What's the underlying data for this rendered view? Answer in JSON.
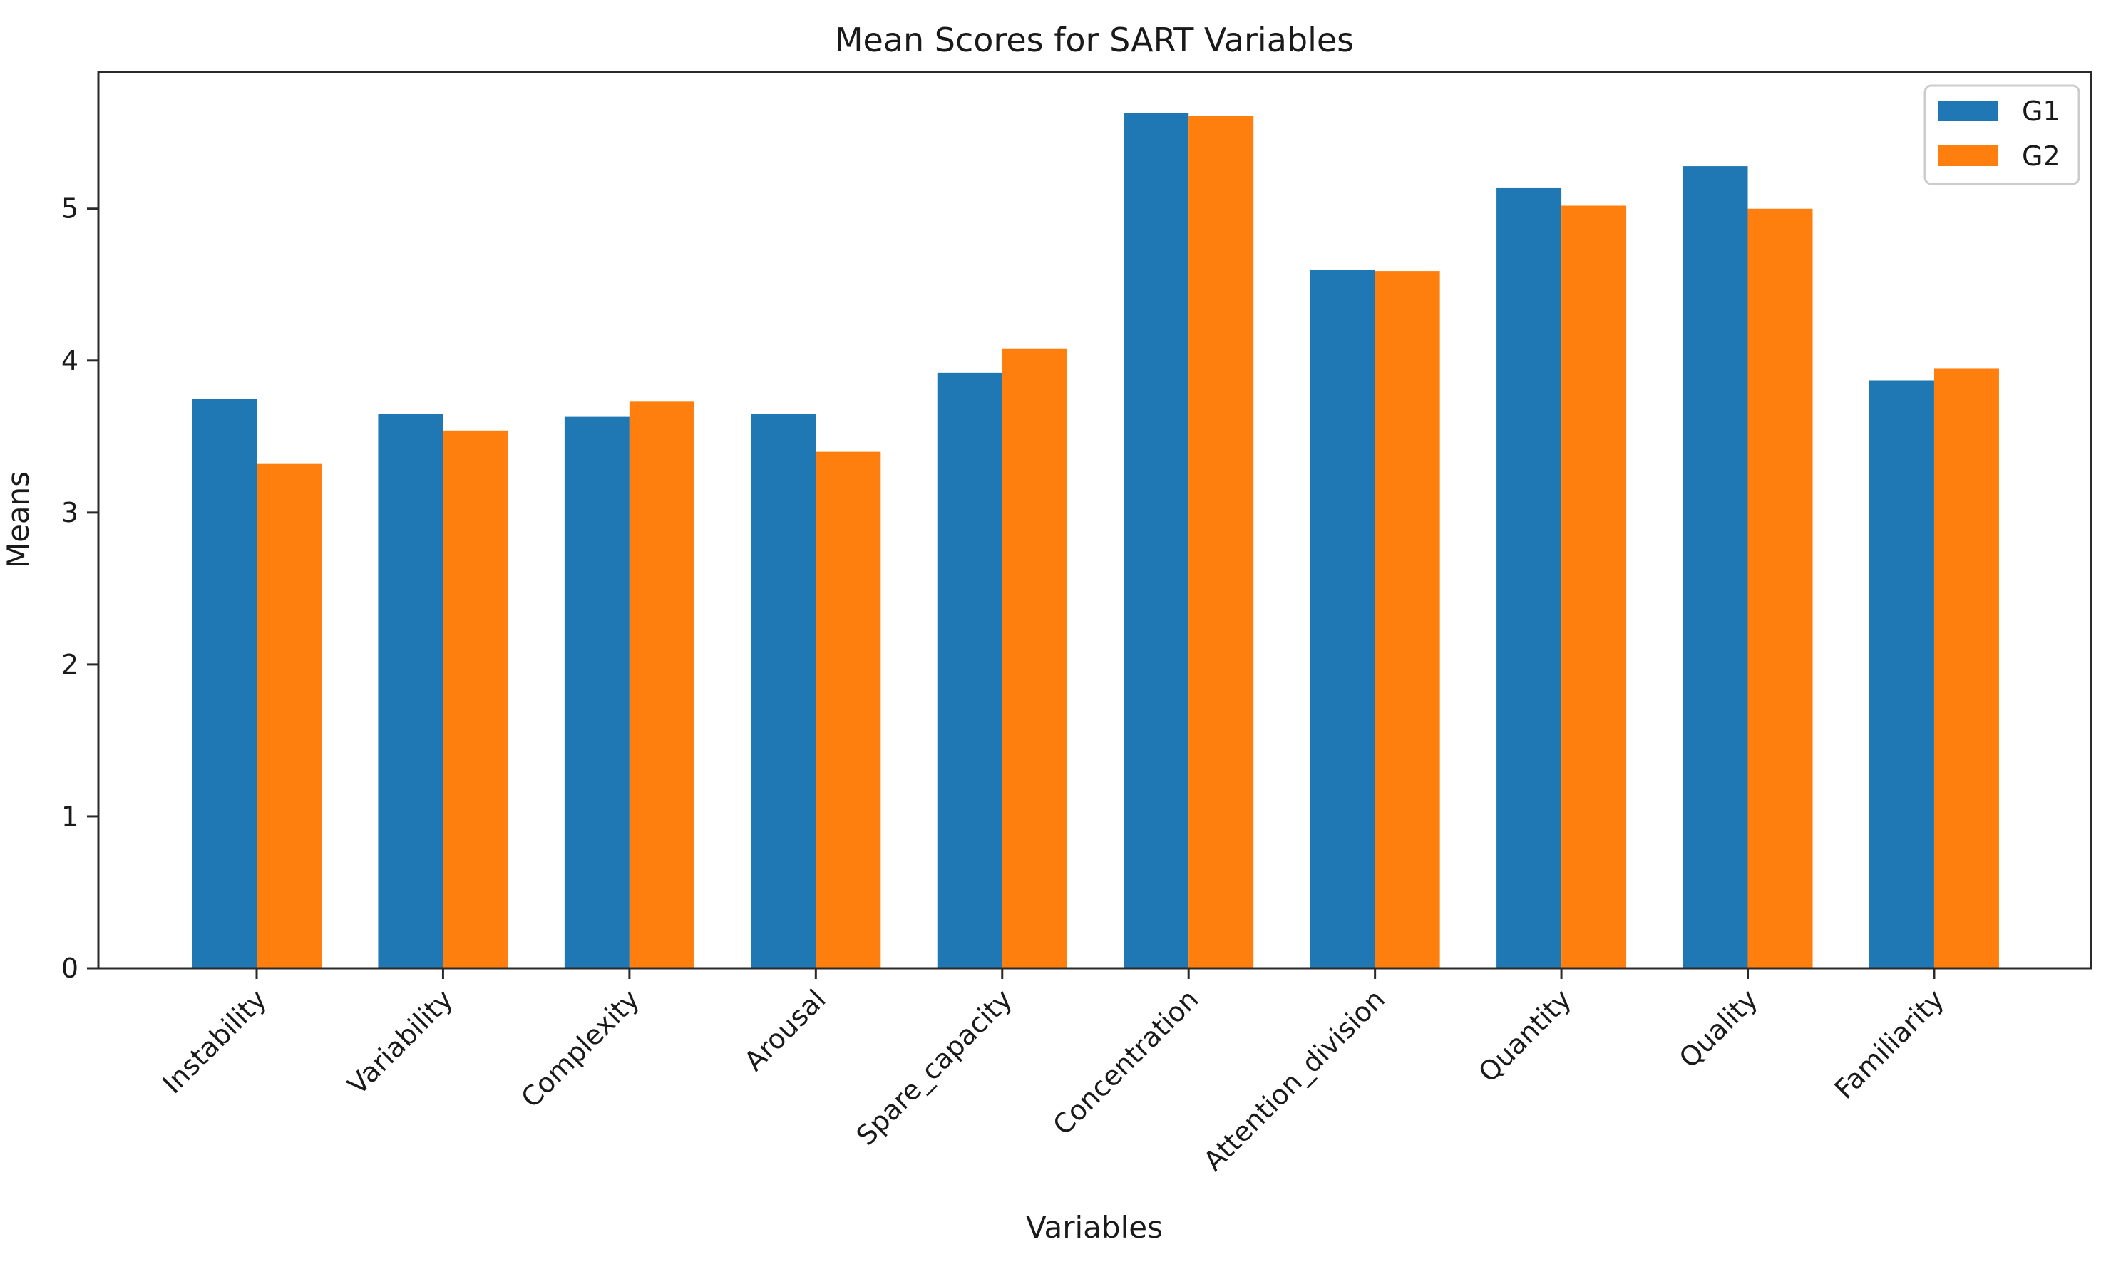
{
  "figure": {
    "background": "#ffffff",
    "frame_color": "#2a2a2a",
    "tick_color": "#2a2a2a",
    "text_color": "#1a1a1a",
    "legend": {
      "border_color": "#cccccc",
      "background": "#ffffff"
    }
  },
  "chart_data": {
    "type": "bar",
    "title": "Mean Scores for SART Variables",
    "xlabel": "Variables",
    "ylabel": "Means",
    "categories": [
      "Instability",
      "Variability",
      "Complexity",
      "Arousal",
      "Spare_capacity",
      "Concentration",
      "Attention_division",
      "Quantity",
      "Quality",
      "Familiarity"
    ],
    "series": [
      {
        "name": "G1",
        "color": "#1f77b4",
        "values": [
          3.75,
          3.65,
          3.63,
          3.65,
          3.92,
          5.63,
          4.6,
          5.14,
          5.28,
          3.87
        ]
      },
      {
        "name": "G2",
        "color": "#ff7f0e",
        "values": [
          3.32,
          3.54,
          3.73,
          3.4,
          4.08,
          5.61,
          4.59,
          5.02,
          5.0,
          3.95
        ]
      }
    ],
    "ylim": [
      0,
      5.9
    ],
    "yticks": [
      0,
      1,
      2,
      3,
      4,
      5
    ],
    "bar_width_fraction": 0.35,
    "x_tick_rotation": 45,
    "grid": false,
    "legend_position": "upper right"
  }
}
